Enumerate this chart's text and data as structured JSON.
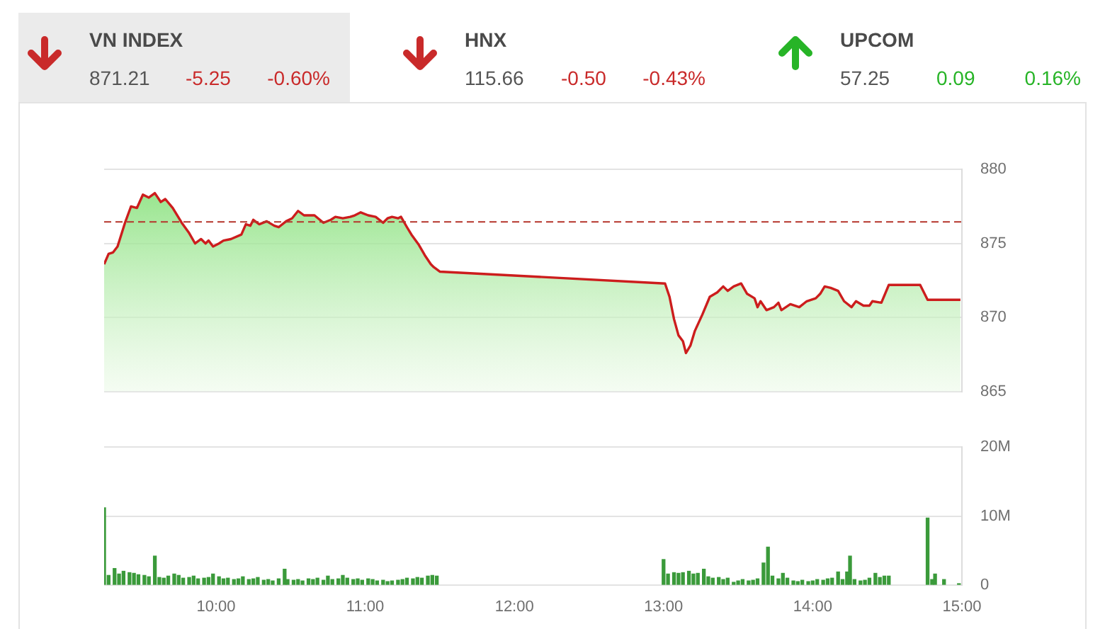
{
  "chart_data": [
    {
      "type": "other",
      "categories": [
        "VN INDEX",
        "HNX",
        "UPCOM"
      ],
      "series": [
        {
          "values": [
            871.21,
            115.66,
            57.25
          ],
          "value_labels": [
            "871.21",
            "115.66",
            "57.25"
          ]
        },
        {
          "colors": [
            "#c92a2a",
            "#c92a2a",
            "#27b427"
          ],
          "values": [
            -5.25,
            -0.5,
            0.09
          ],
          "value_labels": [
            "-5.25",
            "-0.50",
            "0.09"
          ]
        },
        {
          "colors": [
            "#c92a2a",
            "#c92a2a",
            "#27b427"
          ],
          "values": [
            -0.6,
            -0.43,
            0.16
          ],
          "value_labels": [
            "-0.60%",
            "-0.43%",
            "0.16%"
          ]
        }
      ]
    },
    {
      "type": "area",
      "x": [
        9.25,
        9.28,
        9.31,
        9.34,
        9.39,
        9.43,
        9.47,
        9.51,
        9.55,
        9.59,
        9.63,
        9.66,
        9.71,
        9.77,
        9.82,
        9.86,
        9.9,
        9.93,
        9.95,
        9.98,
        10.02,
        10.05,
        10.1,
        10.17,
        10.2,
        10.23,
        10.25,
        10.29,
        10.34,
        10.39,
        10.42,
        10.47,
        10.51,
        10.55,
        10.59,
        10.66,
        10.72,
        10.77,
        10.8,
        10.85,
        10.9,
        10.93,
        10.97,
        11.02,
        11.07,
        11.12,
        11.15,
        11.18,
        11.22,
        11.24,
        11.28,
        11.31,
        11.36,
        11.4,
        11.44,
        11.46,
        11.5,
        13.01,
        13.04,
        13.07,
        13.1,
        13.13,
        13.15,
        13.18,
        13.21,
        13.26,
        13.31,
        13.36,
        13.4,
        13.43,
        13.47,
        13.52,
        13.56,
        13.61,
        13.63,
        13.65,
        13.69,
        13.74,
        13.77,
        13.79,
        13.85,
        13.91,
        13.96,
        14.02,
        14.05,
        14.08,
        14.12,
        14.17,
        14.21,
        14.26,
        14.29,
        14.34,
        14.38,
        14.4,
        14.46,
        14.51,
        14.72,
        14.77,
        14.99
      ],
      "values": [
        873.6,
        874.3,
        874.4,
        874.8,
        876.4,
        877.5,
        877.4,
        878.3,
        878.1,
        878.4,
        877.8,
        878.0,
        877.4,
        876.4,
        875.7,
        875.0,
        875.3,
        875.0,
        875.2,
        874.8,
        875.0,
        875.2,
        875.3,
        875.6,
        876.3,
        876.2,
        876.6,
        876.3,
        876.5,
        876.2,
        876.1,
        876.5,
        876.7,
        877.2,
        876.9,
        876.9,
        876.4,
        876.6,
        876.8,
        876.7,
        876.8,
        876.9,
        877.1,
        876.9,
        876.8,
        876.4,
        876.7,
        876.8,
        876.7,
        876.8,
        876.1,
        875.6,
        874.9,
        874.2,
        873.6,
        873.4,
        873.1,
        872.3,
        871.4,
        869.9,
        868.8,
        868.4,
        867.6,
        868.1,
        869.1,
        870.2,
        871.4,
        871.7,
        872.1,
        871.8,
        872.1,
        872.3,
        871.6,
        871.3,
        870.7,
        871.1,
        870.5,
        870.7,
        871.0,
        870.5,
        870.9,
        870.7,
        871.1,
        871.3,
        871.6,
        872.1,
        872.0,
        871.8,
        871.1,
        870.7,
        871.1,
        870.8,
        870.8,
        871.1,
        871.0,
        872.2,
        872.2,
        871.2,
        871.2
      ],
      "color": "#cc1d1d",
      "xlim": [
        9.25,
        15
      ],
      "ylim": [
        865,
        880
      ],
      "yticks": [
        865,
        870,
        875,
        880
      ],
      "grid": "y",
      "tick_labels": "y",
      "ref_lines": [
        {
          "axis": "y",
          "value": 876.46,
          "color": "#b5342b",
          "line_style": "dashed"
        }
      ]
    },
    {
      "type": "bar",
      "x": [
        9.25,
        9.28,
        9.32,
        9.35,
        9.38,
        9.42,
        9.45,
        9.48,
        9.52,
        9.55,
        9.59,
        9.62,
        9.65,
        9.68,
        9.72,
        9.75,
        9.78,
        9.82,
        9.85,
        9.88,
        9.92,
        9.95,
        9.98,
        10.02,
        10.05,
        10.08,
        10.12,
        10.15,
        10.18,
        10.22,
        10.25,
        10.28,
        10.32,
        10.35,
        10.38,
        10.42,
        10.46,
        10.48,
        10.52,
        10.55,
        10.58,
        10.62,
        10.65,
        10.68,
        10.72,
        10.75,
        10.78,
        10.82,
        10.85,
        10.88,
        10.92,
        10.95,
        10.98,
        11.02,
        11.05,
        11.08,
        11.12,
        11.15,
        11.18,
        11.22,
        11.25,
        11.28,
        11.32,
        11.35,
        11.38,
        11.42,
        11.45,
        11.48,
        13.0,
        13.03,
        13.07,
        13.1,
        13.13,
        13.17,
        13.2,
        13.23,
        13.27,
        13.3,
        13.33,
        13.37,
        13.4,
        13.43,
        13.47,
        13.5,
        13.53,
        13.57,
        13.6,
        13.63,
        13.67,
        13.7,
        13.73,
        13.77,
        13.8,
        13.83,
        13.87,
        13.9,
        13.93,
        13.97,
        14.0,
        14.03,
        14.07,
        14.1,
        14.13,
        14.17,
        14.2,
        14.23,
        14.25,
        14.28,
        14.32,
        14.35,
        14.38,
        14.42,
        14.45,
        14.48,
        14.51,
        14.77,
        14.8,
        14.82,
        14.88,
        14.98
      ],
      "values": [
        11.2,
        1.4,
        2.4,
        1.6,
        2.0,
        1.8,
        1.7,
        1.5,
        1.4,
        1.2,
        4.2,
        1.1,
        1.0,
        1.3,
        1.6,
        1.4,
        1.0,
        1.1,
        1.3,
        0.9,
        1.0,
        1.1,
        1.6,
        1.2,
        0.9,
        1.0,
        0.8,
        0.9,
        1.2,
        0.8,
        0.9,
        1.1,
        0.7,
        0.8,
        0.6,
        0.9,
        2.3,
        0.8,
        0.7,
        0.8,
        0.6,
        0.9,
        0.8,
        1.0,
        0.7,
        1.3,
        0.8,
        0.9,
        1.4,
        1.0,
        0.8,
        0.9,
        0.7,
        0.9,
        0.8,
        0.6,
        0.7,
        0.5,
        0.6,
        0.7,
        0.8,
        1.0,
        0.9,
        1.1,
        1.0,
        1.3,
        1.4,
        1.3,
        3.7,
        1.6,
        1.8,
        1.7,
        1.8,
        2.0,
        1.6,
        1.7,
        2.3,
        1.2,
        1.0,
        1.1,
        0.8,
        1.0,
        0.4,
        0.6,
        0.8,
        0.6,
        0.7,
        0.9,
        3.2,
        5.5,
        1.3,
        0.9,
        1.7,
        1.0,
        0.6,
        0.5,
        0.7,
        0.5,
        0.6,
        0.8,
        0.7,
        0.9,
        1.0,
        1.9,
        0.8,
        1.9,
        4.2,
        0.8,
        0.6,
        0.7,
        1.0,
        1.7,
        1.1,
        1.3,
        1.3,
        9.7,
        0.8,
        1.6,
        0.8,
        0.2
      ],
      "color": "#3a9a3a",
      "xlim": [
        9.25,
        15
      ],
      "xticks": [
        {
          "value": 10,
          "label": "10:00"
        },
        {
          "value": 11,
          "label": "11:00"
        },
        {
          "value": 12,
          "label": "12:00"
        },
        {
          "value": 13,
          "label": "13:00"
        },
        {
          "value": 14,
          "label": "14:00"
        },
        {
          "value": 15,
          "label": "15:00"
        }
      ],
      "ylim": [
        0,
        20
      ],
      "yticks": [
        0,
        {
          "value": 10,
          "label": "10M"
        },
        {
          "value": 20,
          "label": "20M"
        }
      ],
      "grid": "y"
    }
  ]
}
